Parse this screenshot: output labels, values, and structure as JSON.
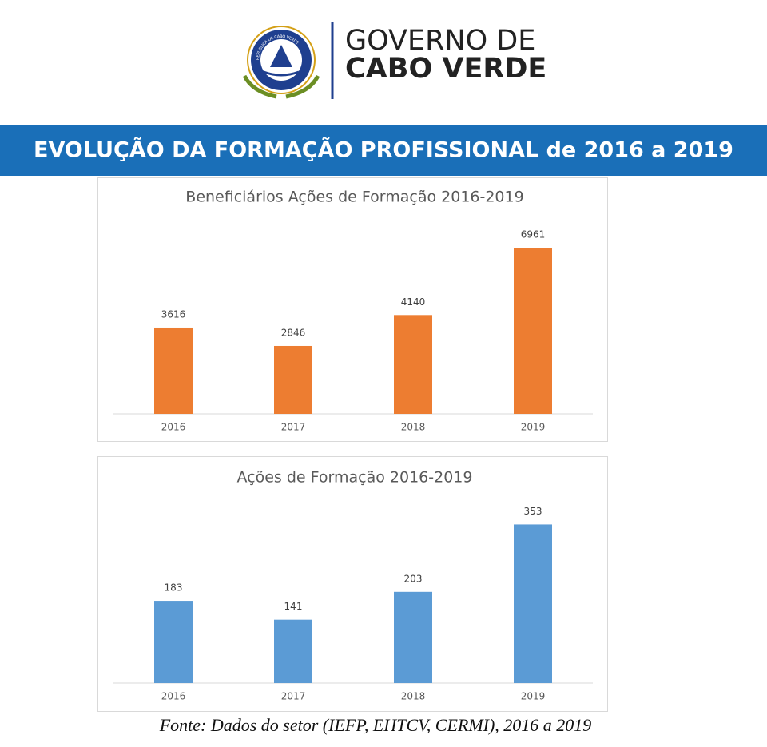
{
  "header": {
    "logo_text": "REPÚBLICA DE CABO VERDE",
    "line1": "GOVERNO DE",
    "line2": "CABO VERDE"
  },
  "banner": {
    "title": "EVOLUÇÃO DA FORMAÇÃO PROFISSIONAL de 2016 a 2019"
  },
  "chart_data": [
    {
      "type": "bar",
      "title": "Beneficiários Ações de Formação 2016-2019",
      "categories": [
        "2016",
        "2017",
        "2018",
        "2019"
      ],
      "values": [
        3616,
        2846,
        4140,
        6961
      ],
      "color": "#ed7d31",
      "ylim": [
        0,
        8000
      ]
    },
    {
      "type": "bar",
      "title": "Ações de Formação 2016-2019",
      "categories": [
        "2016",
        "2017",
        "2018",
        "2019"
      ],
      "values": [
        183,
        141,
        203,
        353
      ],
      "color": "#5b9bd5",
      "ylim": [
        0,
        400
      ]
    }
  ],
  "footer": {
    "source": "Fonte: Dados do setor (IEFP, EHTCV, CERMI), 2016 a 2019"
  }
}
